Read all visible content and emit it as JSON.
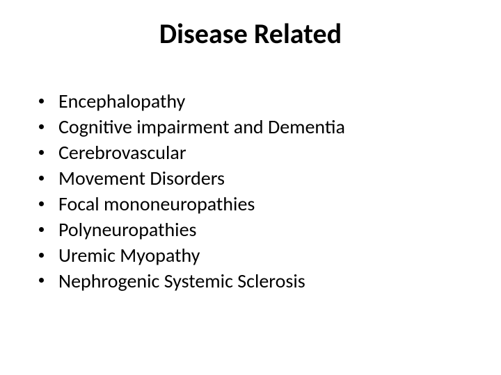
{
  "title": "Disease Related",
  "title_fontsize": 40,
  "title_weight": 700,
  "body_fontsize": 28,
  "line_height": 1.32,
  "background_color": "#ffffff",
  "text_color": "#000000",
  "bullet_color": "#000000",
  "items": [
    "Encephalopathy",
    "Cognitive impairment and Dementia",
    "Cerebrovascular",
    "Movement Disorders",
    "Focal mononeuropathies",
    "Polyneuropathies",
    "Uremic Myopathy",
    "Nephrogenic Systemic Sclerosis"
  ]
}
